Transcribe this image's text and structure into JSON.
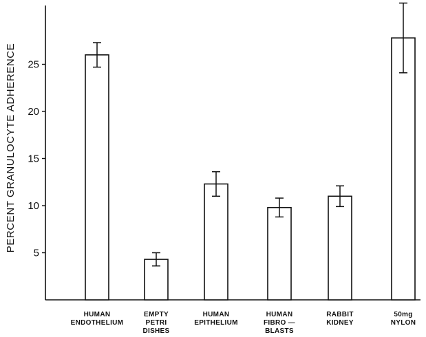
{
  "chart_data": {
    "type": "bar",
    "title": "",
    "xlabel": "",
    "ylabel": "PERCENT GRANULOCYTE ADHERENCE",
    "ylim": [
      0,
      30
    ],
    "yticks": [
      5,
      10,
      15,
      20,
      25
    ],
    "grid": false,
    "categories": [
      "HUMAN ENDOTHELIUM",
      "EMPTY PETRI DISHES",
      "HUMAN EPITHELIUM",
      "HUMAN FIBRO-BLASTS",
      "RABBIT KIDNEY",
      "50mg NYLON"
    ],
    "category_label_lines": [
      [
        "HUMAN",
        "ENDOTHELIUM"
      ],
      [
        "EMPTY",
        "PETRI",
        "DISHES"
      ],
      [
        "HUMAN",
        "EPITHELIUM"
      ],
      [
        "HUMAN",
        "FIBRO —",
        "BLASTS"
      ],
      [
        "RABBIT",
        "KIDNEY"
      ],
      [
        "50mg",
        "NYLON"
      ]
    ],
    "values": [
      26.0,
      4.3,
      12.3,
      9.8,
      11.0,
      27.8
    ],
    "error": [
      1.3,
      0.7,
      1.3,
      1.0,
      1.1,
      3.7
    ],
    "bar_color": "#ffffff",
    "stroke_color": "#111111"
  }
}
